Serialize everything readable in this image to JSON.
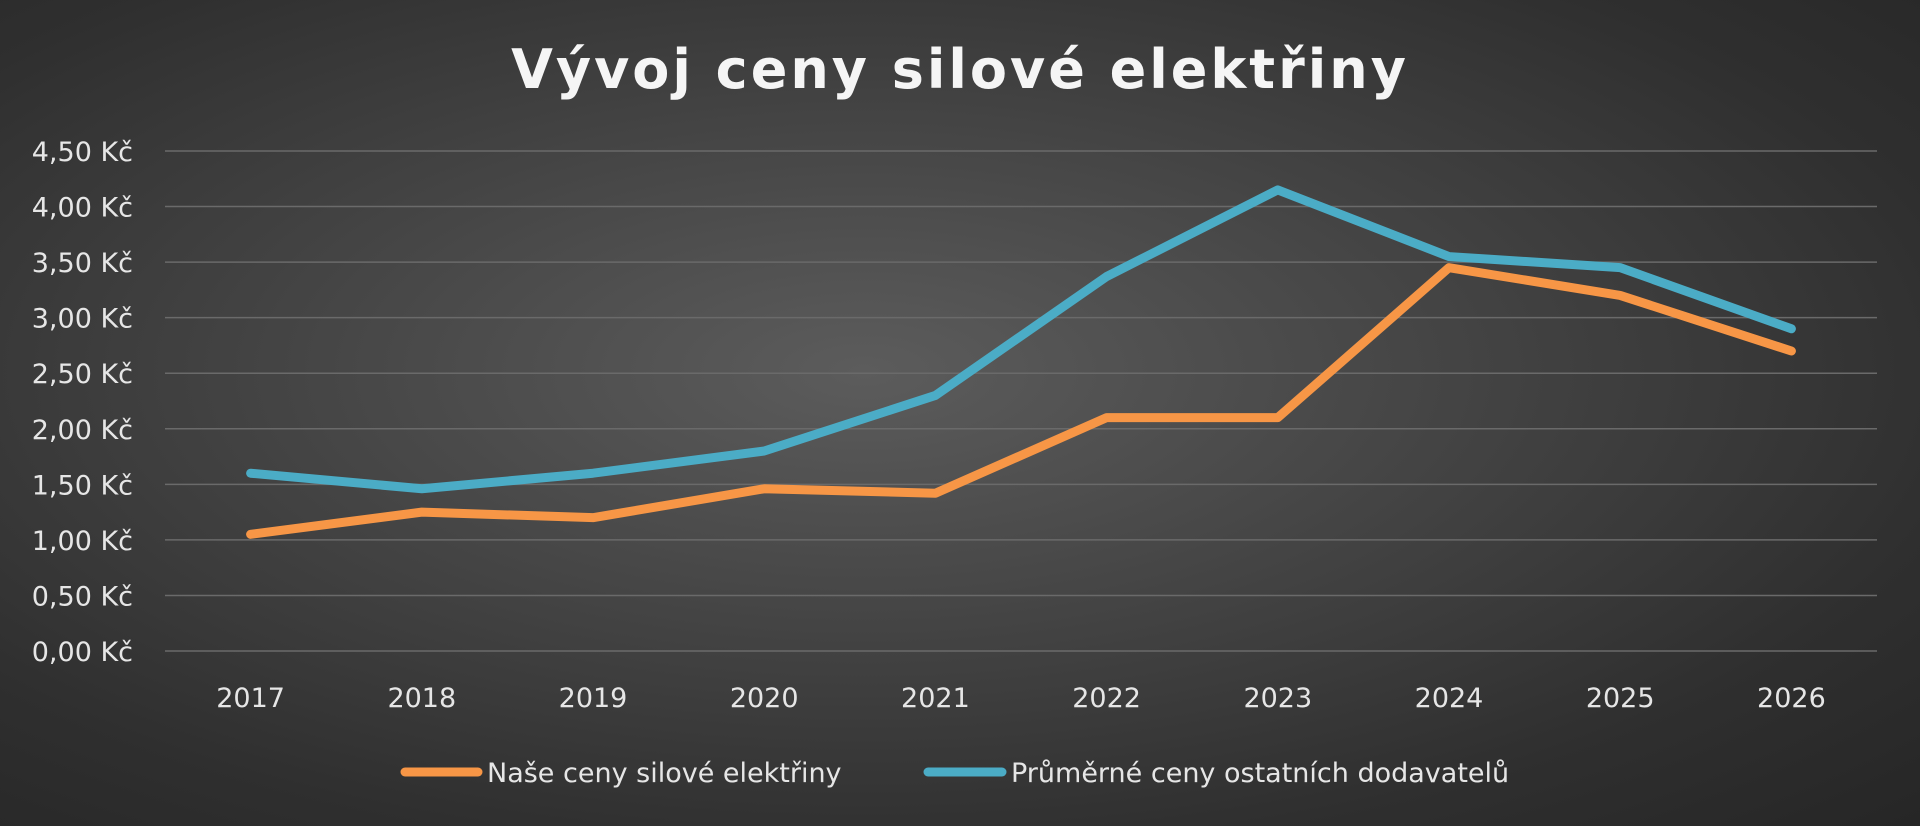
{
  "chart_data": {
    "type": "line",
    "title": "Vývoj ceny silové elektřiny",
    "xlabel": "",
    "ylabel": "",
    "categories": [
      "2017",
      "2018",
      "2019",
      "2020",
      "2021",
      "2022",
      "2023",
      "2024",
      "2025",
      "2026"
    ],
    "series": [
      {
        "name": "Naše ceny silové elektřiny",
        "color": "#f79646",
        "values": [
          1.05,
          1.25,
          1.2,
          1.46,
          1.42,
          2.1,
          2.1,
          3.45,
          3.2,
          2.7
        ]
      },
      {
        "name": "Průměrné ceny ostatních dodavatelů",
        "color": "#4bacc6",
        "values": [
          1.6,
          1.46,
          1.6,
          1.8,
          2.3,
          3.37,
          4.15,
          3.55,
          3.45,
          2.9
        ]
      }
    ],
    "ylim": [
      0,
      4.5
    ],
    "yticks": [
      0,
      0.5,
      1.0,
      1.5,
      2.0,
      2.5,
      3.0,
      3.5,
      4.0,
      4.5
    ],
    "ytick_labels": [
      "0,00 Kč",
      "0,50 Kč",
      "1,00 Kč",
      "1,50 Kč",
      "2,00 Kč",
      "2,50 Kč",
      "3,00 Kč",
      "3,50 Kč",
      "4,00 Kč",
      "4,50 Kč"
    ],
    "grid": true,
    "legend_position": "bottom"
  }
}
